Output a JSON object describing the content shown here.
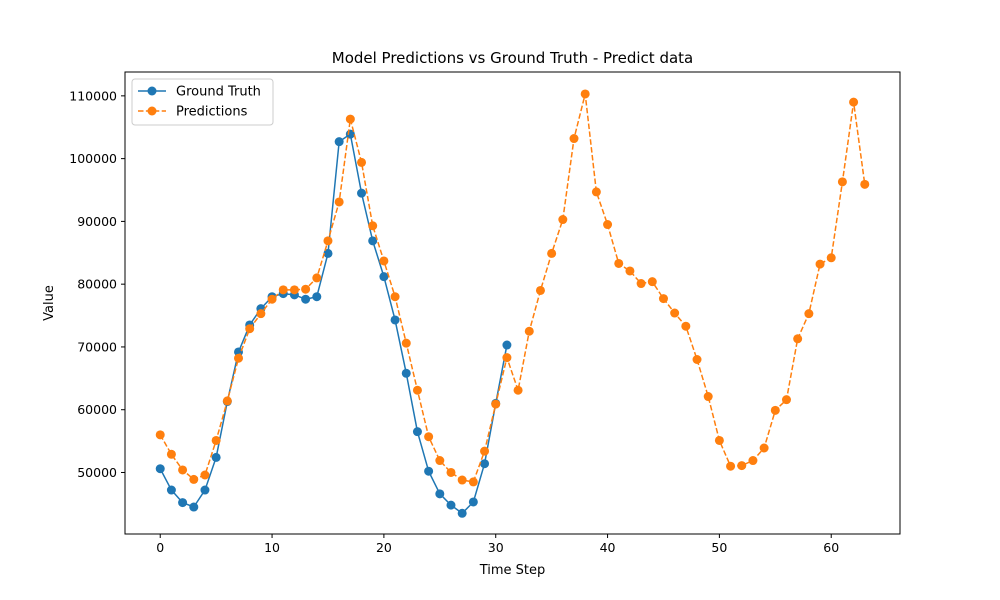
{
  "chart_data": {
    "type": "line",
    "title": "Model Predictions vs Ground Truth - Predict data",
    "xlabel": "Time Step",
    "ylabel": "Value",
    "xlim": [
      -3.15,
      66.15
    ],
    "ylim": [
      40200,
      113800
    ],
    "xticks": [
      0,
      10,
      20,
      30,
      40,
      50,
      60
    ],
    "yticks": [
      50000,
      60000,
      70000,
      80000,
      90000,
      100000,
      110000
    ],
    "grid": false,
    "legend_position": "top-left",
    "series": [
      {
        "name": "Ground Truth",
        "color": "#1f77b4",
        "linestyle": "solid",
        "marker": "circle",
        "x": [
          0,
          1,
          2,
          3,
          4,
          5,
          6,
          7,
          8,
          9,
          10,
          11,
          12,
          13,
          14,
          15,
          16,
          17,
          18,
          19,
          20,
          21,
          22,
          23,
          24,
          25,
          26,
          27,
          28,
          29,
          30,
          31
        ],
        "values": [
          50600,
          47200,
          45200,
          44500,
          47200,
          52400,
          61300,
          69200,
          73500,
          76100,
          78000,
          78500,
          78300,
          77600,
          78000,
          84900,
          102700,
          103900,
          94500,
          86900,
          81200,
          74300,
          65800,
          56500,
          50200,
          46600,
          44800,
          43500,
          45300,
          51400,
          61000,
          70300
        ]
      },
      {
        "name": "Predictions",
        "color": "#ff7f0e",
        "linestyle": "dashed",
        "marker": "circle",
        "x": [
          0,
          1,
          2,
          3,
          4,
          5,
          6,
          7,
          8,
          9,
          10,
          11,
          12,
          13,
          14,
          15,
          16,
          17,
          18,
          19,
          20,
          21,
          22,
          23,
          24,
          25,
          26,
          27,
          28,
          29,
          30,
          31,
          32,
          33,
          34,
          35,
          36,
          37,
          38,
          39,
          40,
          41,
          42,
          43,
          44,
          45,
          46,
          47,
          48,
          49,
          50,
          51,
          52,
          53,
          54,
          55,
          56,
          57,
          58,
          59,
          60,
          61,
          62,
          63
        ],
        "values": [
          56000,
          52900,
          50400,
          48900,
          49600,
          55100,
          61400,
          68200,
          72900,
          75300,
          77600,
          79100,
          79100,
          79200,
          81000,
          86900,
          93100,
          106300,
          99400,
          89300,
          83700,
          78000,
          70600,
          63100,
          55700,
          51900,
          50000,
          48800,
          48500,
          53400,
          60900,
          68300,
          63100,
          72500,
          79000,
          84900,
          90300,
          103200,
          110300,
          94700,
          89500,
          83300,
          82100,
          80100,
          80400,
          77700,
          75400,
          73300,
          68000,
          62100,
          55100,
          51000,
          51100,
          51900,
          53900,
          59900,
          61600,
          71300,
          75300,
          83200,
          84200,
          96300,
          109000,
          95900
        ]
      }
    ]
  }
}
